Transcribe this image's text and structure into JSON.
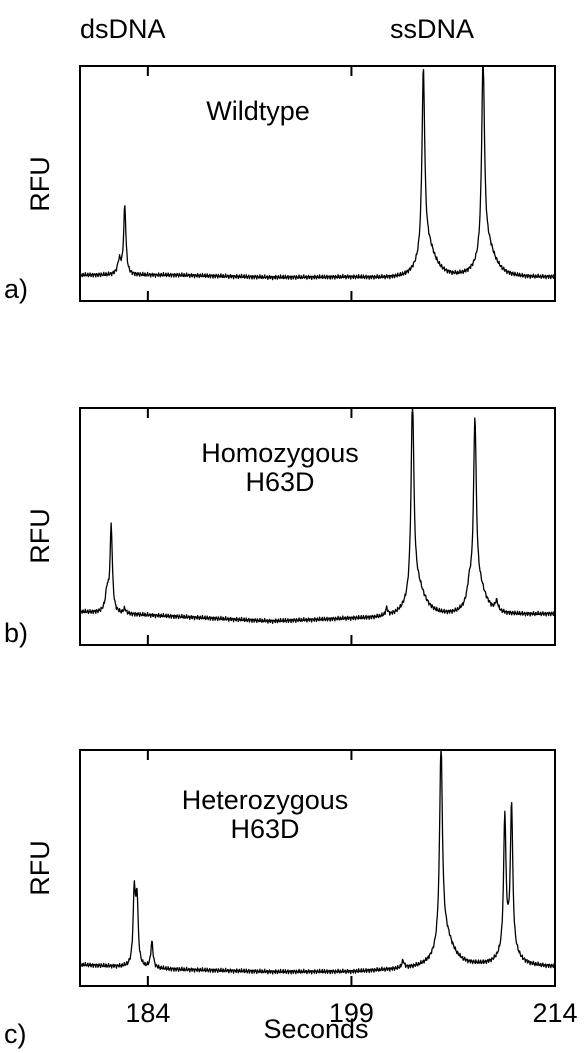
{
  "header": {
    "left": "dsDNA",
    "right": "ssDNA"
  },
  "xlabel": "Seconds",
  "chart_data": [
    {
      "type": "line",
      "panel_label": "a)",
      "ylabel": "RFU",
      "annotation": [
        "Wildtype"
      ],
      "xlim": [
        179,
        214
      ],
      "ylim": [
        0,
        100
      ],
      "x_ticks": [
        184,
        199,
        214
      ],
      "show_tick_labels": false,
      "baseline": [
        [
          179,
          11
        ],
        [
          186,
          11
        ],
        [
          193,
          10
        ],
        [
          199,
          10
        ],
        [
          203,
          9
        ],
        [
          208,
          9
        ],
        [
          214,
          10
        ]
      ],
      "peaks": [
        {
          "x": 182.3,
          "height": 29,
          "width": 0.1
        },
        {
          "x": 181.9,
          "height": 6,
          "width": 0.15
        },
        {
          "x": 204.3,
          "height": 78,
          "width": 0.12
        },
        {
          "x": 204.6,
          "height": 14,
          "width": 0.7
        },
        {
          "x": 208.7,
          "height": 84,
          "width": 0.12
        },
        {
          "x": 209.0,
          "height": 14,
          "width": 0.7
        }
      ]
    },
    {
      "type": "line",
      "panel_label": "b)",
      "ylabel": "RFU",
      "annotation": [
        "Homozygous",
        "H63D"
      ],
      "xlim": [
        179,
        214
      ],
      "ylim": [
        0,
        100
      ],
      "x_ticks": [
        184,
        199,
        214
      ],
      "show_tick_labels": false,
      "baseline": [
        [
          179,
          14
        ],
        [
          186,
          12
        ],
        [
          193,
          10
        ],
        [
          199,
          11
        ],
        [
          203,
          11
        ],
        [
          208,
          12
        ],
        [
          214,
          13
        ]
      ],
      "peaks": [
        {
          "x": 181.3,
          "height": 36,
          "width": 0.1
        },
        {
          "x": 181.0,
          "height": 9,
          "width": 0.15
        },
        {
          "x": 182.3,
          "height": 2,
          "width": 0.1
        },
        {
          "x": 201.6,
          "height": 3,
          "width": 0.1
        },
        {
          "x": 203.5,
          "height": 82,
          "width": 0.12
        },
        {
          "x": 203.8,
          "height": 14,
          "width": 0.7
        },
        {
          "x": 208.1,
          "height": 73,
          "width": 0.12
        },
        {
          "x": 207.7,
          "height": 8,
          "width": 0.2
        },
        {
          "x": 208.4,
          "height": 12,
          "width": 0.6
        },
        {
          "x": 209.7,
          "height": 4,
          "width": 0.12
        }
      ]
    },
    {
      "type": "line",
      "panel_label": "c)",
      "ylabel": "RFU",
      "annotation": [
        "Heterozygous",
        "H63D"
      ],
      "xlim": [
        179,
        214
      ],
      "ylim": [
        0,
        100
      ],
      "x_ticks": [
        184,
        199,
        214
      ],
      "tick_labels": [
        "184",
        "199",
        "214"
      ],
      "show_tick_labels": true,
      "baseline": [
        [
          179,
          9
        ],
        [
          186,
          7
        ],
        [
          193,
          6
        ],
        [
          199,
          6
        ],
        [
          203,
          7
        ],
        [
          208,
          8
        ],
        [
          214,
          8
        ]
      ],
      "peaks": [
        {
          "x": 183.0,
          "height": 31,
          "width": 0.1
        },
        {
          "x": 183.2,
          "height": 28,
          "width": 0.1
        },
        {
          "x": 184.3,
          "height": 11,
          "width": 0.1
        },
        {
          "x": 202.8,
          "height": 3,
          "width": 0.1
        },
        {
          "x": 205.6,
          "height": 84,
          "width": 0.12
        },
        {
          "x": 205.9,
          "height": 14,
          "width": 0.7
        },
        {
          "x": 210.3,
          "height": 56,
          "width": 0.1
        },
        {
          "x": 210.8,
          "height": 60,
          "width": 0.1
        },
        {
          "x": 210.6,
          "height": 10,
          "width": 0.6
        }
      ]
    }
  ]
}
